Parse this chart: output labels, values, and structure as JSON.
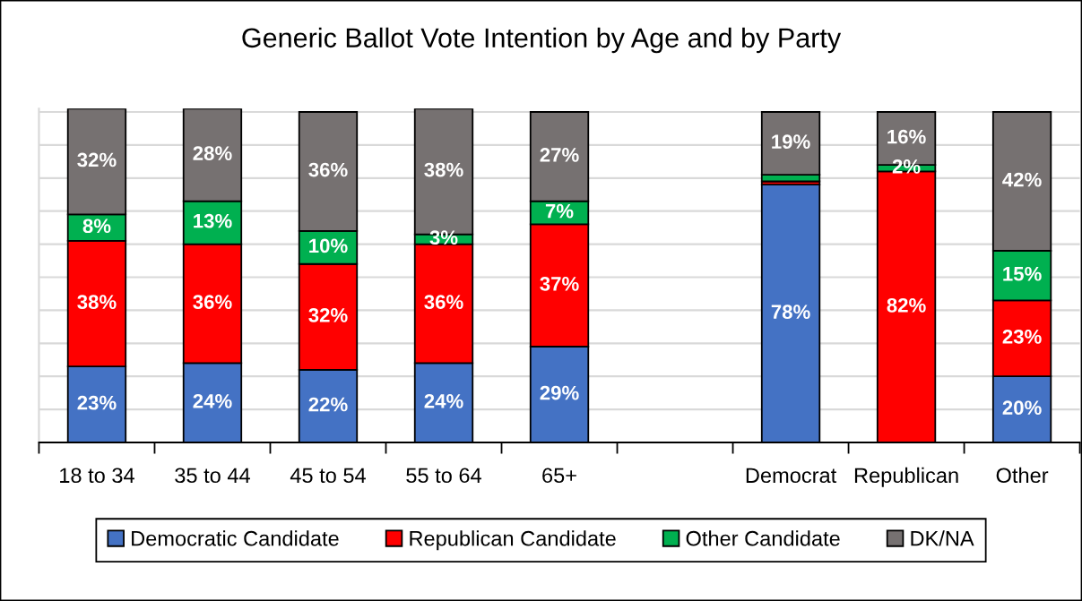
{
  "chart_data": {
    "type": "bar",
    "title": "Generic Ballot Vote Intention by Age and by Party",
    "categories": [
      "18 to 34",
      "35 to 44",
      "45 to 54",
      "55 to 64",
      "65+",
      null,
      "Democrat",
      "Republican",
      "Other"
    ],
    "stacked": true,
    "series": [
      {
        "name": "Democratic Candidate",
        "color": "#4472c4",
        "values": [
          23,
          24,
          22,
          24,
          29,
          null,
          78,
          null,
          20
        ],
        "value_labels": [
          "23%",
          "24%",
          "22%",
          "24%",
          "29%",
          null,
          "78%",
          null,
          "20%"
        ]
      },
      {
        "name": "Republican Candidate",
        "color": "#ff0000",
        "values": [
          38,
          36,
          32,
          36,
          37,
          null,
          1,
          82,
          23
        ],
        "value_labels": [
          "38%",
          "36%",
          "32%",
          "36%",
          "37%",
          null,
          null,
          "82%",
          "23%"
        ]
      },
      {
        "name": "Other Candidate",
        "color": "#00b050",
        "values": [
          8,
          13,
          10,
          3,
          7,
          null,
          2,
          2,
          15
        ],
        "value_labels": [
          "8%",
          "13%",
          "10%",
          "3%",
          "7%",
          null,
          null,
          "2%",
          "15%"
        ]
      },
      {
        "name": "DK/NA",
        "color": "#767171",
        "values": [
          32,
          28,
          36,
          38,
          27,
          null,
          19,
          16,
          42
        ],
        "value_labels": [
          "32%",
          "28%",
          "36%",
          "38%",
          "27%",
          null,
          "19%",
          "16%",
          "42%"
        ]
      }
    ],
    "ylim": [
      0,
      101
    ],
    "yticks": [
      {
        "value": 0,
        "label": null
      },
      {
        "value": 10,
        "label": null
      },
      {
        "value": 20,
        "label": null
      },
      {
        "value": 30,
        "label": null
      },
      {
        "value": 40,
        "label": null
      },
      {
        "value": 50,
        "label": null
      },
      {
        "value": 60,
        "label": null
      },
      {
        "value": 70,
        "label": null
      },
      {
        "value": 80,
        "label": null
      },
      {
        "value": 90,
        "label": null
      },
      {
        "value": 100,
        "label": null
      }
    ],
    "grid": "y",
    "legend": "bottom",
    "tick_labels": "x"
  }
}
